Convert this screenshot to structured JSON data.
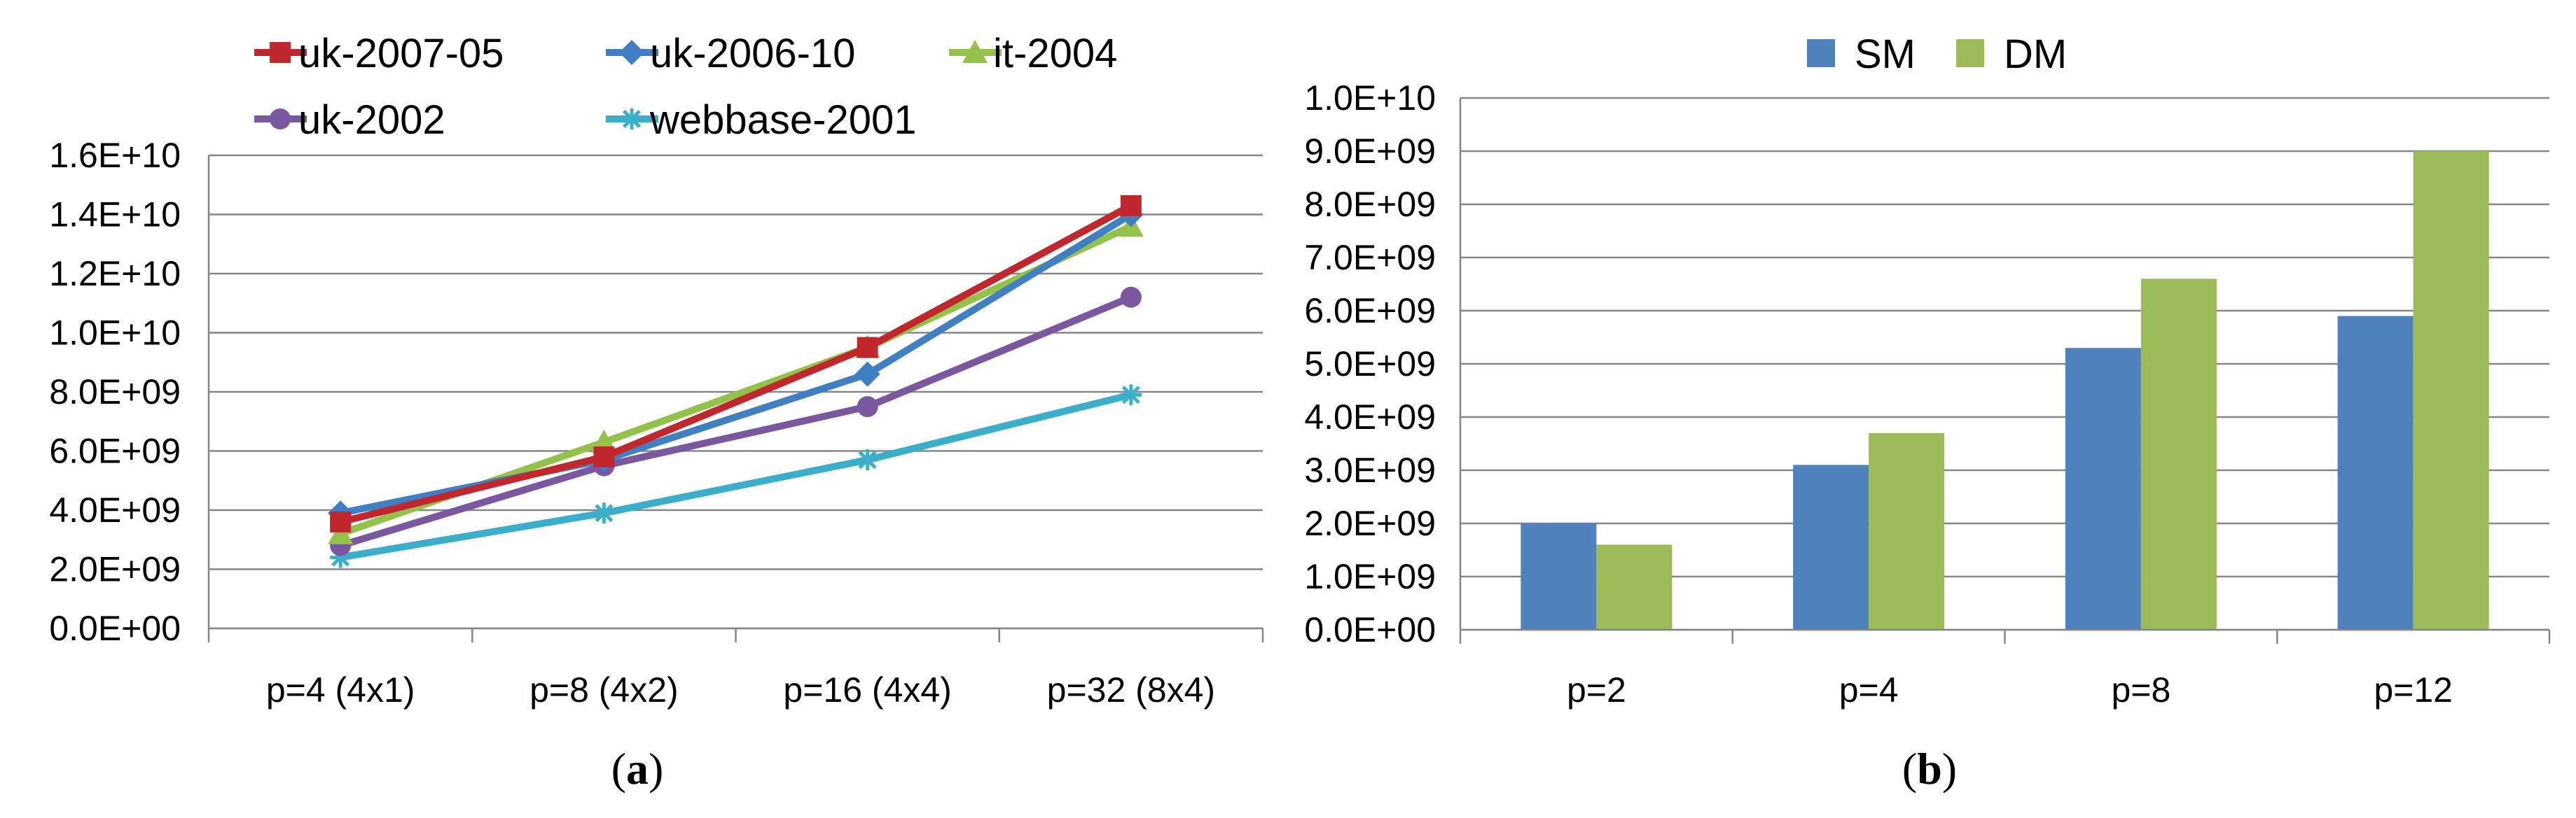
{
  "chart_data": [
    {
      "type": "line",
      "panel_label": "a",
      "categories": [
        "p=4 (4x1)",
        "p=8 (4x2)",
        "p=16 (4x4)",
        "p=32 (8x4)"
      ],
      "series": [
        {
          "name": "uk-2007-05",
          "color": "#C0282D",
          "marker": "square",
          "values": [
            3600000000.0,
            5800000000.0,
            9500000000.0,
            14300000000.0
          ]
        },
        {
          "name": "uk-2006-10",
          "color": "#3F7FC2",
          "marker": "diamond",
          "values": [
            3900000000.0,
            5700000000.0,
            8600000000.0,
            14000000000.0
          ]
        },
        {
          "name": "it-2004",
          "color": "#93C149",
          "marker": "triangle",
          "values": [
            3200000000.0,
            6300000000.0,
            9500000000.0,
            13600000000.0
          ]
        },
        {
          "name": "uk-2002",
          "color": "#7B57A0",
          "marker": "circle",
          "values": [
            2800000000.0,
            5500000000.0,
            7500000000.0,
            11200000000.0
          ]
        },
        {
          "name": "webbase-2001",
          "color": "#3BAFC9",
          "marker": "star",
          "values": [
            2400000000.0,
            3900000000.0,
            5700000000.0,
            7900000000.0
          ]
        }
      ],
      "ylim": [
        0,
        16000000000.0
      ],
      "yticks": [
        {
          "value": 0,
          "label": "0.0E+00"
        },
        {
          "value": 2000000000.0,
          "label": "2.0E+09"
        },
        {
          "value": 4000000000.0,
          "label": "4.0E+09"
        },
        {
          "value": 6000000000.0,
          "label": "6.0E+09"
        },
        {
          "value": 8000000000.0,
          "label": "8.0E+09"
        },
        {
          "value": 10000000000.0,
          "label": "1.0E+10"
        },
        {
          "value": 12000000000.0,
          "label": "1.2E+10"
        },
        {
          "value": 14000000000.0,
          "label": "1.4E+10"
        },
        {
          "value": 16000000000.0,
          "label": "1.6E+10"
        }
      ],
      "grid": true,
      "title": "",
      "xlabel": "",
      "ylabel": ""
    },
    {
      "type": "bar",
      "panel_label": "b",
      "categories": [
        "p=2",
        "p=4",
        "p=8",
        "p=12"
      ],
      "series": [
        {
          "name": "SM",
          "color": "#4F81BD",
          "values": [
            2000000000.0,
            3100000000.0,
            5300000000.0,
            5900000000.0
          ]
        },
        {
          "name": "DM",
          "color": "#9BBB59",
          "values": [
            1600000000.0,
            3700000000.0,
            6600000000.0,
            9000000000.0
          ]
        }
      ],
      "ylim": [
        0,
        10000000000.0
      ],
      "yticks": [
        {
          "value": 0,
          "label": "0.0E+00"
        },
        {
          "value": 1000000000.0,
          "label": "1.0E+09"
        },
        {
          "value": 2000000000.0,
          "label": "2.0E+09"
        },
        {
          "value": 3000000000.0,
          "label": "3.0E+09"
        },
        {
          "value": 4000000000.0,
          "label": "4.0E+09"
        },
        {
          "value": 5000000000.0,
          "label": "5.0E+09"
        },
        {
          "value": 6000000000.0,
          "label": "6.0E+09"
        },
        {
          "value": 7000000000.0,
          "label": "7.0E+09"
        },
        {
          "value": 8000000000.0,
          "label": "8.0E+09"
        },
        {
          "value": 9000000000.0,
          "label": "9.0E+09"
        },
        {
          "value": 10000000000.0,
          "label": "1.0E+10"
        }
      ],
      "grid": true,
      "title": "",
      "xlabel": "",
      "ylabel": ""
    }
  ]
}
